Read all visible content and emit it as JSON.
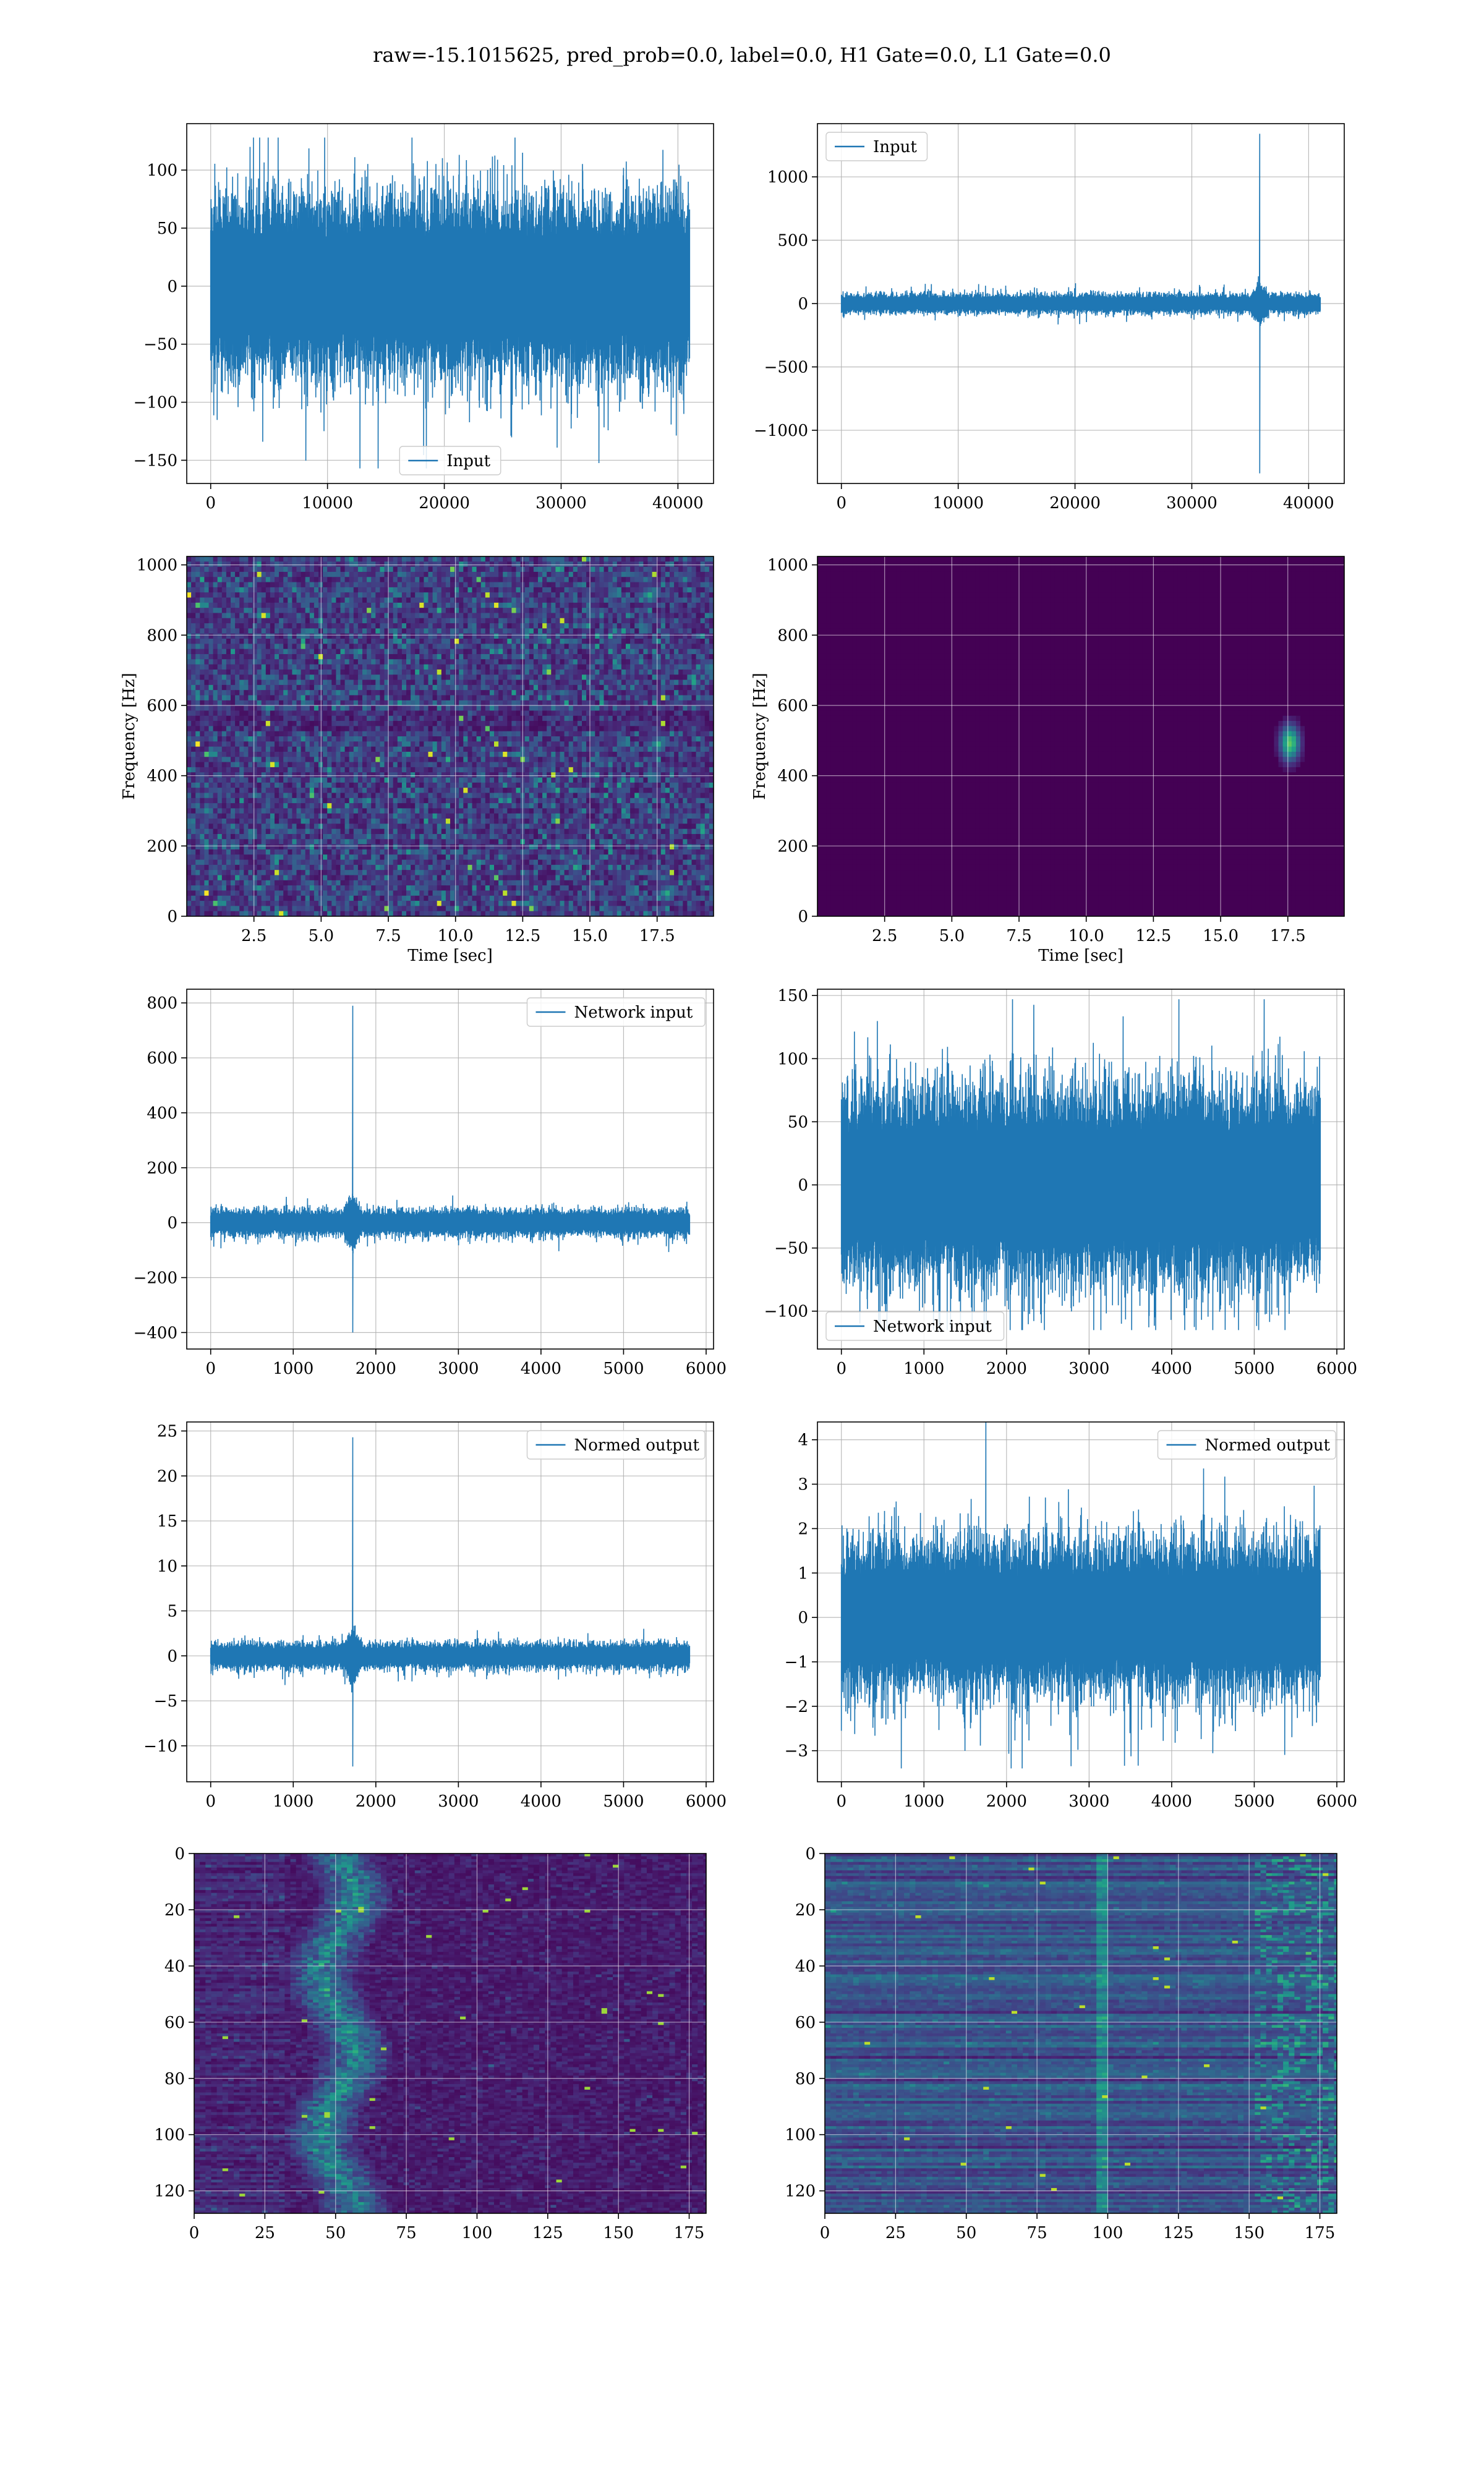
{
  "figure_title": "raw=-15.1015625, pred_prob=0.0, label=0.0, H1 Gate=0.0, L1 Gate=0.0",
  "colors": {
    "line": "#1f77b4",
    "grid": "#b0b0b0",
    "viridis_dark": "#440154",
    "viridis_mid": "#3b528b",
    "viridis_teal": "#21918c",
    "viridis_green": "#5ec962",
    "viridis_yellow": "#fde725"
  },
  "chart_data": [
    {
      "id": "p00",
      "type": "line",
      "legend": "Input",
      "legend_loc": "lower center",
      "x_range": [
        0,
        41000
      ],
      "ylim": [
        -170,
        140
      ],
      "x_ticks": [
        0,
        10000,
        20000,
        30000,
        40000
      ],
      "y_ticks": [
        -150,
        -100,
        -50,
        0,
        50,
        100
      ],
      "signal": {
        "kind": "noise",
        "amplitude": 45,
        "peak_max": 128,
        "peak_min": -157
      }
    },
    {
      "id": "p01",
      "type": "line",
      "legend": "Input",
      "legend_loc": "upper left",
      "x_range": [
        0,
        41000
      ],
      "ylim": [
        -1420,
        1420
      ],
      "x_ticks": [
        0,
        10000,
        20000,
        30000,
        40000
      ],
      "y_ticks": [
        -1000,
        -500,
        0,
        500,
        1000
      ],
      "signal": {
        "kind": "noise_spike",
        "amplitude": 45,
        "spike_x": 35800,
        "spike_max": 1340,
        "spike_min": -1340
      }
    },
    {
      "id": "p10",
      "type": "heatmap",
      "ylabel": "Frequency [Hz]",
      "xlabel": "Time [sec]",
      "x_range": [
        0,
        19.6
      ],
      "ylim": [
        0,
        1024
      ],
      "x_ticks": [
        "2.5",
        "5.0",
        "7.5",
        "10.0",
        "12.5",
        "15.0",
        "17.5"
      ],
      "y_ticks": [
        "0",
        "200",
        "400",
        "600",
        "800",
        "1000"
      ],
      "style": "noisy"
    },
    {
      "id": "p11",
      "type": "heatmap",
      "ylabel": "Frequency [Hz]",
      "xlabel": "Time [sec]",
      "x_range": [
        0,
        19.6
      ],
      "ylim": [
        0,
        1024
      ],
      "x_ticks": [
        "2.5",
        "5.0",
        "7.5",
        "10.0",
        "12.5",
        "15.0",
        "17.5"
      ],
      "y_ticks": [
        "0",
        "200",
        "400",
        "600",
        "800",
        "1000"
      ],
      "style": "dark_blip",
      "blip_time": 17.5,
      "blip_freq": 500
    },
    {
      "id": "p20",
      "type": "line",
      "legend": "Network input",
      "legend_loc": "upper right",
      "x_range": [
        0,
        5800
      ],
      "ylim": [
        -460,
        850
      ],
      "x_ticks": [
        0,
        1000,
        2000,
        3000,
        4000,
        5000,
        6000
      ],
      "y_ticks": [
        -400,
        -200,
        0,
        200,
        400,
        600,
        800
      ],
      "signal": {
        "kind": "noise_spike",
        "amplitude": 28,
        "spike_x": 1720,
        "spike_max": 790,
        "spike_min": -400
      }
    },
    {
      "id": "p21",
      "type": "line",
      "legend": "Network input",
      "legend_loc": "lower left",
      "x_range": [
        0,
        5800
      ],
      "ylim": [
        -130,
        155
      ],
      "x_ticks": [
        0,
        1000,
        2000,
        3000,
        4000,
        5000,
        6000
      ],
      "y_ticks": [
        -100,
        -50,
        0,
        50,
        100,
        150
      ],
      "signal": {
        "kind": "noise",
        "amplitude": 45,
        "peak_max": 147,
        "peak_min": -115
      }
    },
    {
      "id": "p30",
      "type": "line",
      "legend": "Normed output",
      "legend_loc": "upper right",
      "x_range": [
        0,
        5800
      ],
      "ylim": [
        -14,
        26
      ],
      "x_ticks": [
        0,
        1000,
        2000,
        3000,
        4000,
        5000,
        6000
      ],
      "y_ticks": [
        -10,
        -5,
        0,
        5,
        10,
        15,
        20,
        25
      ],
      "signal": {
        "kind": "noise_spike",
        "amplitude": 0.85,
        "spike_x": 1720,
        "spike_max": 24.3,
        "spike_min": -12.3
      }
    },
    {
      "id": "p31",
      "type": "line",
      "legend": "Normed output",
      "legend_loc": "upper right",
      "x_range": [
        0,
        5800
      ],
      "ylim": [
        -3.7,
        4.4
      ],
      "x_ticks": [
        0,
        1000,
        2000,
        3000,
        4000,
        5000,
        6000
      ],
      "y_ticks": [
        -3,
        -2,
        -1,
        0,
        1,
        2,
        3,
        4
      ],
      "signal": {
        "kind": "noise",
        "amplitude": 1.0,
        "peak_max": 4.5,
        "peak_min": -3.4
      }
    },
    {
      "id": "p40",
      "type": "heatmap",
      "x_range": [
        0,
        181
      ],
      "ylim": [
        128,
        0
      ],
      "x_ticks": [
        "0",
        "25",
        "50",
        "75",
        "100",
        "125",
        "150",
        "175"
      ],
      "y_ticks": [
        "0",
        "20",
        "40",
        "60",
        "80",
        "100",
        "120"
      ],
      "style": "feature_left"
    },
    {
      "id": "p41",
      "type": "heatmap",
      "x_range": [
        0,
        181
      ],
      "ylim": [
        128,
        0
      ],
      "x_ticks": [
        "0",
        "25",
        "50",
        "75",
        "100",
        "125",
        "150",
        "175"
      ],
      "y_ticks": [
        "0",
        "20",
        "40",
        "60",
        "80",
        "100",
        "120"
      ],
      "style": "feature_right"
    }
  ]
}
